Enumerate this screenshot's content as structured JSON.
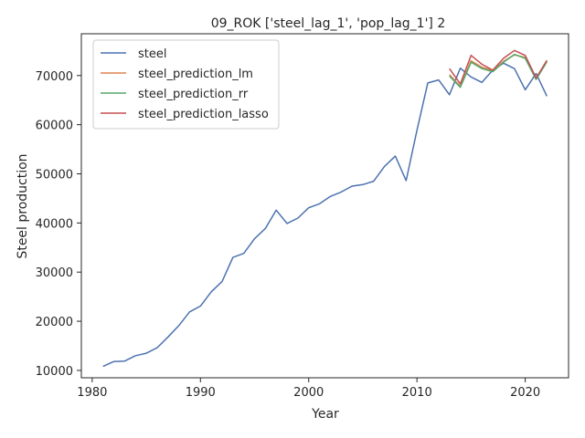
{
  "chart_data": {
    "type": "line",
    "title": "09_ROK ['steel_lag_1', 'pop_lag_1'] 2",
    "xlabel": "Year",
    "ylabel": "Steel production",
    "xlim": [
      1979,
      2024
    ],
    "ylim": [
      8500,
      78500
    ],
    "xticks": [
      1980,
      1990,
      2000,
      2010,
      2020
    ],
    "yticks": [
      10000,
      20000,
      30000,
      40000,
      50000,
      60000,
      70000
    ],
    "grid": false,
    "legend_position": "top-left",
    "series": [
      {
        "name": "steel",
        "color": "#4c72b0",
        "x": [
          1981,
          1982,
          1983,
          1984,
          1985,
          1986,
          1987,
          1988,
          1989,
          1990,
          1991,
          1992,
          1993,
          1994,
          1995,
          1996,
          1997,
          1998,
          1999,
          2000,
          2001,
          2002,
          2003,
          2004,
          2005,
          2006,
          2007,
          2008,
          2009,
          2010,
          2011,
          2012,
          2013,
          2014,
          2015,
          2016,
          2017,
          2018,
          2019,
          2020,
          2021,
          2022
        ],
        "y": [
          10800,
          11800,
          11900,
          13000,
          13500,
          14600,
          16800,
          19100,
          21900,
          23100,
          26000,
          28100,
          33000,
          33800,
          36800,
          38900,
          42600,
          39900,
          41000,
          43100,
          43900,
          45400,
          46300,
          47500,
          47800,
          48500,
          51500,
          53600,
          48600,
          58900,
          68500,
          69100,
          66100,
          71500,
          69700,
          68600,
          71100,
          72500,
          71400,
          67100,
          70400,
          65800
        ]
      },
      {
        "name": "steel_prediction_lm",
        "color": "#dd8452",
        "x": [
          2013,
          2014,
          2015,
          2016,
          2017,
          2018,
          2019,
          2020,
          2021,
          2022
        ],
        "y": [
          70200,
          67800,
          73000,
          71700,
          71000,
          72900,
          74200,
          73700,
          69300,
          73000
        ]
      },
      {
        "name": "steel_prediction_rr",
        "color": "#55a868",
        "x": [
          2013,
          2014,
          2015,
          2016,
          2017,
          2018,
          2019,
          2020,
          2021,
          2022
        ],
        "y": [
          69900,
          67600,
          72700,
          71400,
          70800,
          72700,
          74300,
          73500,
          69200,
          72800
        ]
      },
      {
        "name": "steel_prediction_lasso",
        "color": "#c44e52",
        "x": [
          2013,
          2014,
          2015,
          2016,
          2017,
          2018,
          2019,
          2020,
          2021,
          2022
        ],
        "y": [
          71400,
          68300,
          74100,
          72300,
          71100,
          73500,
          75100,
          74100,
          69500,
          73100
        ]
      }
    ]
  }
}
